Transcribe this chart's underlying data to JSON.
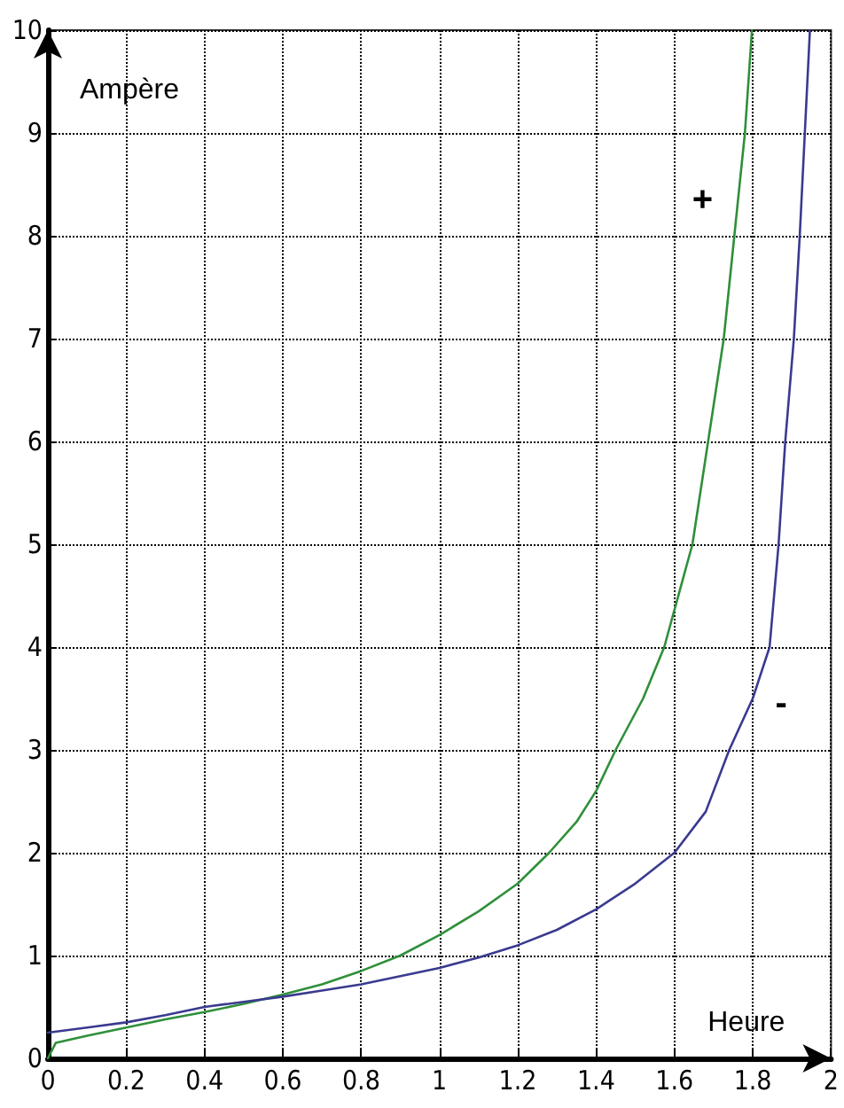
{
  "chart_data": {
    "type": "line",
    "xlabel": "Heure",
    "ylabel": "Ampère",
    "xlim": [
      0,
      2
    ],
    "xticks": [
      0,
      0.2,
      0.4,
      0.6,
      0.8,
      1,
      1.2,
      1.4,
      1.6,
      1.8,
      2
    ],
    "ylim": [
      0,
      10
    ],
    "yticks": [
      0,
      1,
      2,
      3,
      4,
      5,
      6,
      7,
      8,
      9,
      10
    ],
    "grid": true,
    "marker": "none",
    "line_style": "solid",
    "series": [
      {
        "name": "+",
        "color": "#2f8f3a",
        "x": [
          0,
          0.02,
          0.1,
          0.2,
          0.3,
          0.4,
          0.5,
          0.6,
          0.7,
          0.8,
          0.9,
          1.0,
          1.1,
          1.2,
          1.28,
          1.35,
          1.4,
          1.45,
          1.52,
          1.574,
          1.646,
          1.686,
          1.726,
          1.753,
          1.78,
          1.798
        ],
        "values": [
          0,
          0.15,
          0.22,
          0.3,
          0.38,
          0.45,
          0.53,
          0.62,
          0.72,
          0.85,
          1.0,
          1.2,
          1.43,
          1.7,
          2.0,
          2.3,
          2.6,
          3.0,
          3.5,
          4,
          5,
          6,
          7,
          8,
          9,
          10
        ]
      },
      {
        "name": "-",
        "color": "#3a3a90",
        "x": [
          0,
          0.1,
          0.2,
          0.3,
          0.4,
          0.5,
          0.6,
          0.7,
          0.8,
          0.9,
          1.0,
          1.1,
          1.2,
          1.3,
          1.4,
          1.5,
          1.6,
          1.68,
          1.74,
          1.8,
          1.843,
          1.866,
          1.883,
          1.905,
          1.92,
          1.933,
          1.946
        ],
        "values": [
          0.25,
          0.3,
          0.35,
          0.42,
          0.5,
          0.55,
          0.6,
          0.66,
          0.72,
          0.8,
          0.88,
          0.98,
          1.1,
          1.25,
          1.45,
          1.7,
          2.0,
          2.4,
          3.0,
          3.5,
          4,
          5,
          6,
          7,
          8,
          9,
          10
        ]
      }
    ]
  }
}
